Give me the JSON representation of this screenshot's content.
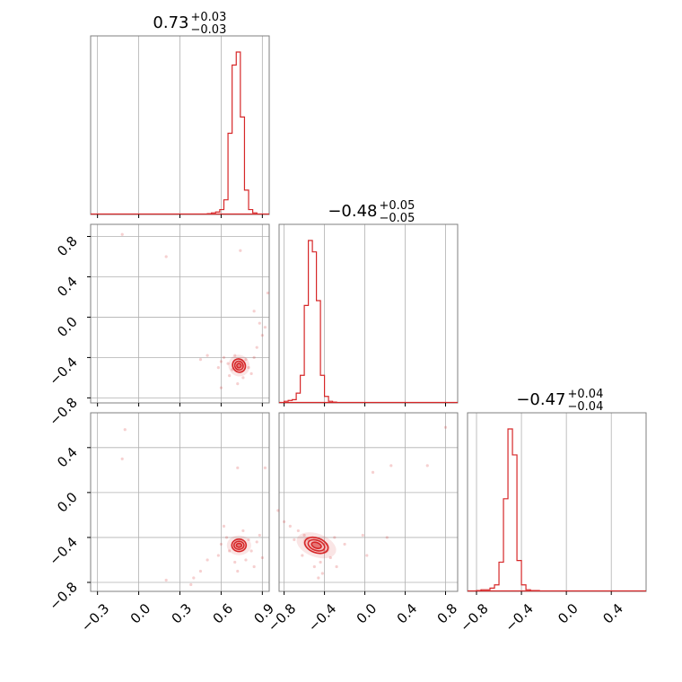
{
  "chart_data": {
    "type": "corner",
    "color": "#d62728",
    "grid": true,
    "params": [
      {
        "title_value": "0.73",
        "title_plus": "+0.03",
        "title_minus": "−0.03",
        "range": [
          -0.35,
          0.95
        ],
        "ticks": [
          -0.3,
          0.0,
          0.3,
          0.6,
          0.9
        ],
        "tick_labels": [
          "−0.3",
          "0.0",
          "0.3",
          "0.6",
          "0.9"
        ],
        "hist_edges": [
          0.5,
          0.53,
          0.56,
          0.59,
          0.62,
          0.65,
          0.68,
          0.71,
          0.74,
          0.77,
          0.8,
          0.83,
          0.86
        ],
        "hist_counts": [
          0.005,
          0.01,
          0.015,
          0.03,
          0.09,
          0.5,
          0.92,
          1.0,
          0.6,
          0.15,
          0.03,
          0.01
        ]
      },
      {
        "title_value": "−0.48",
        "title_plus": "+0.05",
        "title_minus": "−0.05",
        "range": [
          -0.85,
          0.92
        ],
        "ticks": [
          -0.8,
          -0.4,
          0.0,
          0.4,
          0.8
        ],
        "tick_labels": [
          "−0.8",
          "−0.4",
          "0.0",
          "0.4",
          "0.8"
        ],
        "hist_edges": [
          -0.8,
          -0.76,
          -0.72,
          -0.68,
          -0.64,
          -0.6,
          -0.56,
          -0.52,
          -0.48,
          -0.44,
          -0.4,
          -0.36,
          -0.32,
          -0.28
        ],
        "hist_counts": [
          0.01,
          0.015,
          0.02,
          0.06,
          0.17,
          0.6,
          1.0,
          0.93,
          0.63,
          0.17,
          0.04,
          0.01,
          0.005
        ]
      },
      {
        "title_value": "−0.47",
        "title_plus": "+0.04",
        "title_minus": "−0.04",
        "range": [
          -0.88,
          0.71
        ],
        "ticks": [
          -0.8,
          -0.4,
          0.0,
          0.4
        ],
        "tick_labels": [
          "−0.8",
          "−0.4",
          "0.0",
          "0.4"
        ],
        "hist_edges": [
          -0.8,
          -0.76,
          -0.72,
          -0.68,
          -0.64,
          -0.6,
          -0.56,
          -0.52,
          -0.48,
          -0.44,
          -0.4,
          -0.36,
          -0.32,
          -0.28,
          -0.24
        ],
        "hist_counts": [
          0.005,
          0.01,
          0.01,
          0.02,
          0.04,
          0.18,
          0.57,
          1.0,
          0.84,
          0.19,
          0.04,
          0.01,
          0.005,
          0.005
        ]
      }
    ],
    "pairs": [
      {
        "x_param": 0,
        "y_param": 1,
        "center": [
          0.73,
          -0.48
        ],
        "contour_radii": [
          [
            0.016,
            0.022
          ],
          [
            0.03,
            0.044
          ],
          [
            0.045,
            0.068
          ]
        ],
        "contour_tilt": -0.6,
        "scatter": [
          [
            0.62,
            -0.4
          ],
          [
            0.65,
            -0.46
          ],
          [
            0.68,
            -0.52
          ],
          [
            0.7,
            -0.38
          ],
          [
            0.78,
            -0.42
          ],
          [
            0.8,
            -0.5
          ],
          [
            0.66,
            -0.58
          ],
          [
            0.76,
            -0.6
          ],
          [
            0.6,
            -0.44
          ],
          [
            0.84,
            -0.4
          ],
          [
            0.72,
            -0.66
          ],
          [
            0.82,
            -0.56
          ],
          [
            0.58,
            -0.5
          ],
          [
            0.86,
            -0.3
          ],
          [
            0.88,
            -0.06
          ],
          [
            0.84,
            0.06
          ],
          [
            0.9,
            -0.18
          ],
          [
            0.2,
            0.6
          ],
          [
            -0.12,
            0.82
          ],
          [
            0.74,
            0.66
          ],
          [
            0.94,
            0.24
          ],
          [
            0.45,
            -0.42
          ],
          [
            0.5,
            -0.38
          ],
          [
            0.6,
            -0.7
          ],
          [
            0.92,
            -0.1
          ]
        ]
      },
      {
        "x_param": 0,
        "y_param": 2,
        "center": [
          0.73,
          -0.47
        ],
        "contour_radii": [
          [
            0.02,
            0.018
          ],
          [
            0.036,
            0.036
          ],
          [
            0.052,
            0.055
          ]
        ],
        "contour_tilt": 0,
        "scatter": [
          [
            0.64,
            -0.4
          ],
          [
            0.66,
            -0.52
          ],
          [
            0.8,
            -0.42
          ],
          [
            0.82,
            -0.52
          ],
          [
            0.7,
            -0.62
          ],
          [
            0.78,
            -0.6
          ],
          [
            0.6,
            -0.46
          ],
          [
            0.86,
            -0.44
          ],
          [
            0.58,
            -0.56
          ],
          [
            0.88,
            -0.38
          ],
          [
            0.72,
            -0.7
          ],
          [
            0.76,
            -0.34
          ],
          [
            0.5,
            -0.6
          ],
          [
            0.45,
            -0.7
          ],
          [
            0.4,
            -0.76
          ],
          [
            0.38,
            -0.82
          ],
          [
            0.2,
            -0.78
          ],
          [
            -0.1,
            0.56
          ],
          [
            -0.12,
            0.3
          ],
          [
            0.72,
            0.22
          ],
          [
            0.92,
            0.22
          ],
          [
            0.62,
            -0.3
          ],
          [
            0.84,
            -0.66
          ],
          [
            0.9,
            -0.58
          ]
        ]
      },
      {
        "x_param": 1,
        "y_param": 2,
        "center": [
          -0.48,
          -0.47
        ],
        "contour_radii": [
          [
            0.05,
            0.025
          ],
          [
            0.085,
            0.045
          ],
          [
            0.12,
            0.065
          ]
        ],
        "contour_tilt": 0.35,
        "scatter": [
          [
            -0.6,
            -0.38
          ],
          [
            -0.66,
            -0.34
          ],
          [
            -0.74,
            -0.3
          ],
          [
            -0.8,
            -0.26
          ],
          [
            -0.56,
            -0.42
          ],
          [
            -0.4,
            -0.52
          ],
          [
            -0.34,
            -0.58
          ],
          [
            -0.44,
            -0.62
          ],
          [
            -0.5,
            -0.66
          ],
          [
            -0.38,
            -0.46
          ],
          [
            -0.3,
            -0.4
          ],
          [
            -0.28,
            -0.66
          ],
          [
            -0.42,
            -0.72
          ],
          [
            -0.46,
            -0.76
          ],
          [
            -0.62,
            -0.56
          ],
          [
            -0.7,
            -0.42
          ],
          [
            0.08,
            0.18
          ],
          [
            0.26,
            0.24
          ],
          [
            0.62,
            0.24
          ],
          [
            0.8,
            0.58
          ],
          [
            -0.02,
            -0.38
          ],
          [
            0.22,
            -0.4
          ],
          [
            0.02,
            -0.56
          ],
          [
            -0.2,
            -0.46
          ],
          [
            -0.86,
            -0.16
          ]
        ]
      }
    ]
  }
}
